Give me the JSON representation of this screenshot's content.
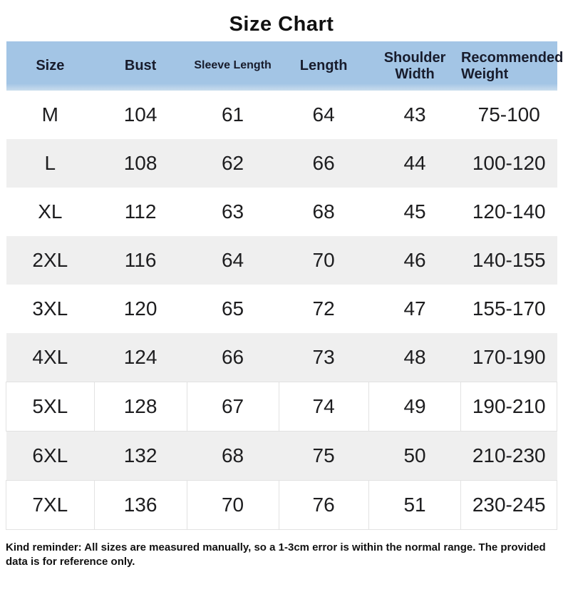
{
  "title": "Size Chart",
  "note": "Kind reminder: All sizes are measured manually, so a 1-3cm error is within the normal range. The provided data is for reference only.",
  "colors": {
    "header_bg": "#a3c5e5",
    "header_bg_bottom": "#cadded",
    "row_alt_bg": "#efefef",
    "cell_border": "#e2e2e2",
    "header_text": "#181c2c",
    "body_text": "#1d1d1f"
  },
  "chart_data": {
    "type": "table",
    "title": "Size Chart",
    "columns": [
      "Size",
      "Bust",
      "Sleeve Length",
      "Length",
      "Shoulder Width",
      "Recommended Weight"
    ],
    "header_lines": [
      [
        "Size"
      ],
      [
        "Bust"
      ],
      [
        "Sleeve Length"
      ],
      [
        "Length"
      ],
      [
        "Shoulder",
        "Width"
      ],
      [
        "Recommended",
        "Weight"
      ]
    ],
    "rows": [
      [
        "M",
        "104",
        "61",
        "64",
        "43",
        "75-100"
      ],
      [
        "L",
        "108",
        "62",
        "66",
        "44",
        "100-120"
      ],
      [
        "XL",
        "112",
        "63",
        "68",
        "45",
        "120-140"
      ],
      [
        "2XL",
        "116",
        "64",
        "70",
        "46",
        "140-155"
      ],
      [
        "3XL",
        "120",
        "65",
        "72",
        "47",
        "155-170"
      ],
      [
        "4XL",
        "124",
        "66",
        "73",
        "48",
        "170-190"
      ],
      [
        "5XL",
        "128",
        "67",
        "74",
        "49",
        "190-210"
      ],
      [
        "6XL",
        "132",
        "68",
        "75",
        "50",
        "210-230"
      ],
      [
        "7XL",
        "136",
        "70",
        "76",
        "51",
        "230-245"
      ]
    ],
    "layout": {
      "header_background": "#a3c5e5",
      "alternating_row_background": "#efefef",
      "bordered_row_indices": [
        6,
        8
      ]
    }
  }
}
